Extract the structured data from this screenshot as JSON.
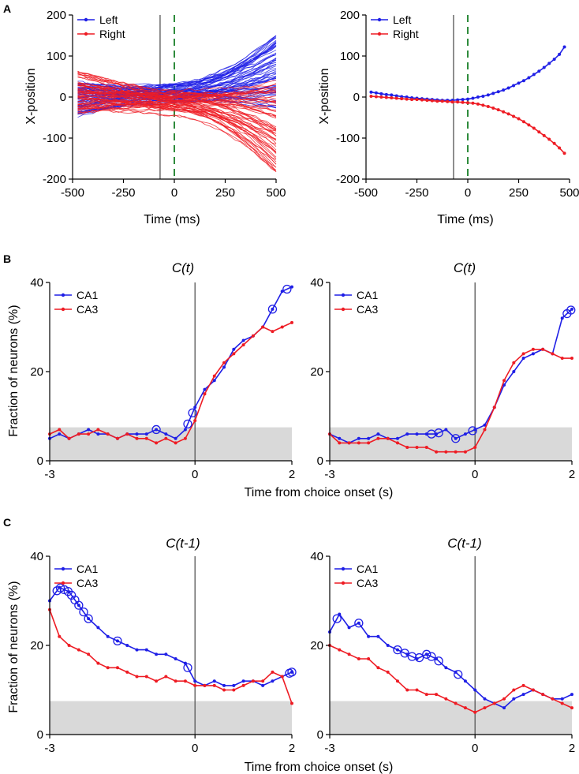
{
  "figure": {
    "panel_a": "A",
    "panel_b": "B",
    "panel_c": "C",
    "xlabel_ms": "Time (ms)",
    "ylabel_pos": "X-position",
    "xlabel_choice": "Time from choice onset (s)",
    "ylabel_frac": "Fraction of neurons (%)",
    "title_b": "C(t)",
    "title_c": "C(t-1)",
    "legend_left": "Left",
    "legend_right": "Right",
    "legend_ca1": "CA1",
    "legend_ca3": "CA3"
  },
  "colors": {
    "blue": "#1f1fe6",
    "red": "#ee1c24",
    "gray_band": "#d9d9d9",
    "green_dash": "#2e8b3c",
    "vline": "#555555"
  },
  "chart_data": [
    {
      "id": "A1",
      "type": "line",
      "title": "",
      "xlabel": "Time (ms)",
      "ylabel": "X-position",
      "xlim": [
        -500,
        500
      ],
      "ylim": [
        -200,
        200
      ],
      "xticks": [
        -500,
        -250,
        0,
        250,
        500
      ],
      "xtick_labels": [
        "-500",
        "-250",
        "0",
        "250",
        "500"
      ],
      "yticks": [
        -200,
        -100,
        0,
        100,
        200
      ],
      "ytick_labels": [
        "-200",
        "-100",
        "0",
        "100",
        "200"
      ],
      "vline_solid": -70,
      "vline_dashed": 0,
      "legend": [
        "Left",
        "Right"
      ],
      "note": "Individual trial trajectories (many trials per side)",
      "trial_bundles": [
        {
          "name": "Left",
          "color": "blue",
          "n": 60,
          "start_range": [
            -50,
            40
          ],
          "end_range": [
            -30,
            155
          ]
        },
        {
          "name": "Right",
          "color": "red",
          "n": 60,
          "start_range": [
            -40,
            65
          ],
          "end_range": [
            -190,
            40
          ]
        }
      ]
    },
    {
      "id": "A2",
      "type": "line",
      "title": "",
      "xlabel": "Time (ms)",
      "ylabel": "X-position",
      "xlim": [
        -500,
        500
      ],
      "ylim": [
        -200,
        200
      ],
      "xticks": [
        -500,
        -250,
        0,
        250,
        500
      ],
      "xtick_labels": [
        "-500",
        "-250",
        "0",
        "250",
        "500"
      ],
      "yticks": [
        -200,
        -100,
        0,
        100,
        200
      ],
      "ytick_labels": [
        "-200",
        "-100",
        "0",
        "100",
        "200"
      ],
      "vline_solid": -70,
      "vline_dashed": 0,
      "legend": [
        "Left",
        "Right"
      ],
      "x": [
        -475,
        -450,
        -425,
        -400,
        -375,
        -350,
        -325,
        -300,
        -275,
        -250,
        -225,
        -200,
        -175,
        -150,
        -125,
        -100,
        -75,
        -50,
        -25,
        0,
        25,
        50,
        75,
        100,
        125,
        150,
        175,
        200,
        225,
        250,
        275,
        300,
        325,
        350,
        375,
        400,
        425,
        450,
        475
      ],
      "series": [
        {
          "name": "Left",
          "color": "blue",
          "values": [
            12,
            10,
            8,
            6,
            5,
            3,
            1,
            0,
            -2,
            -3,
            -4,
            -5,
            -6,
            -7,
            -8,
            -8,
            -8,
            -7,
            -6,
            -5,
            -3,
            0,
            2,
            5,
            9,
            13,
            17,
            22,
            28,
            34,
            40,
            47,
            55,
            63,
            72,
            82,
            92,
            104,
            122
          ]
        },
        {
          "name": "Right",
          "color": "red",
          "values": [
            2,
            1,
            0,
            -1,
            -2,
            -3,
            -4,
            -5,
            -6,
            -6,
            -7,
            -8,
            -9,
            -10,
            -10,
            -11,
            -12,
            -12,
            -13,
            -14,
            -15,
            -17,
            -20,
            -23,
            -27,
            -31,
            -36,
            -41,
            -47,
            -53,
            -60,
            -68,
            -76,
            -85,
            -94,
            -103,
            -113,
            -124,
            -137
          ]
        }
      ]
    },
    {
      "id": "B1",
      "type": "line",
      "title": "C(t)",
      "xlabel": "",
      "ylabel": "Fraction of neurons (%)",
      "xlim": [
        -3,
        2
      ],
      "ylim": [
        0,
        40
      ],
      "xticks": [
        -3,
        0,
        2
      ],
      "xtick_labels": [
        "-3",
        "0",
        "2"
      ],
      "yticks": [
        0,
        20,
        40
      ],
      "ytick_labels": [
        "0",
        "20",
        "40"
      ],
      "vline_solid": 0,
      "shaded_band": [
        0,
        7.5
      ],
      "legend": [
        "CA1",
        "CA3"
      ],
      "x": [
        -3.0,
        -2.8,
        -2.6,
        -2.4,
        -2.2,
        -2.0,
        -1.8,
        -1.6,
        -1.4,
        -1.2,
        -1.0,
        -0.8,
        -0.6,
        -0.4,
        -0.2,
        0.0,
        0.2,
        0.4,
        0.6,
        0.8,
        1.0,
        1.2,
        1.4,
        1.6,
        1.8,
        2.0
      ],
      "series": [
        {
          "name": "CA1",
          "color": "blue",
          "values": [
            5,
            6,
            5,
            6,
            7,
            6,
            6,
            5,
            6,
            6,
            6,
            7,
            6,
            5,
            7,
            12,
            16,
            18,
            21,
            25,
            27,
            28,
            30,
            34,
            38,
            39
          ]
        },
        {
          "name": "CA3",
          "color": "red",
          "values": [
            6,
            7,
            5,
            6,
            6,
            7,
            6,
            5,
            6,
            5,
            5,
            4,
            5,
            4,
            5,
            9,
            15,
            19,
            22,
            24,
            26,
            28,
            30,
            29,
            30,
            31
          ]
        }
      ],
      "sig_markers": [
        {
          "series": "CA1",
          "x": [
            -0.8,
            -0.15,
            -0.05,
            1.6,
            1.9
          ]
        }
      ]
    },
    {
      "id": "B2",
      "type": "line",
      "title": "C(t)",
      "xlabel": "",
      "ylabel": "",
      "xlim": [
        -3,
        2
      ],
      "ylim": [
        0,
        40
      ],
      "xticks": [
        -3,
        0,
        2
      ],
      "xtick_labels": [
        "-3",
        "0",
        "2"
      ],
      "yticks": [
        0,
        20,
        40
      ],
      "ytick_labels": [
        "0",
        "20",
        "40"
      ],
      "vline_solid": 0,
      "shaded_band": [
        0,
        7.5
      ],
      "legend": [
        "CA1",
        "CA3"
      ],
      "x": [
        -3.0,
        -2.8,
        -2.6,
        -2.4,
        -2.2,
        -2.0,
        -1.8,
        -1.6,
        -1.4,
        -1.2,
        -1.0,
        -0.8,
        -0.6,
        -0.4,
        -0.2,
        0.0,
        0.2,
        0.4,
        0.6,
        0.8,
        1.0,
        1.2,
        1.4,
        1.6,
        1.8,
        2.0
      ],
      "series": [
        {
          "name": "CA1",
          "color": "blue",
          "values": [
            6,
            5,
            4,
            5,
            5,
            6,
            5,
            5,
            6,
            6,
            6,
            6,
            7,
            5,
            6,
            7,
            8,
            12,
            17,
            20,
            23,
            24,
            25,
            24,
            32,
            34
          ]
        },
        {
          "name": "CA3",
          "color": "red",
          "values": [
            6,
            4,
            4,
            4,
            4,
            5,
            5,
            4,
            3,
            3,
            3,
            2,
            2,
            2,
            2,
            3,
            7,
            12,
            18,
            22,
            24,
            25,
            25,
            24,
            23,
            23
          ]
        }
      ],
      "sig_markers": [
        {
          "series": "CA1",
          "x": [
            -0.9,
            -0.75,
            -0.4,
            -0.05,
            1.9,
            1.98
          ]
        }
      ]
    },
    {
      "id": "C1",
      "type": "line",
      "title": "C(t-1)",
      "xlabel": "Time from choice onset (s)",
      "ylabel": "Fraction of neurons (%)",
      "xlim": [
        -3,
        2
      ],
      "ylim": [
        0,
        40
      ],
      "xticks": [
        -3,
        0,
        2
      ],
      "xtick_labels": [
        "-3",
        "0",
        "2"
      ],
      "yticks": [
        0,
        20,
        40
      ],
      "ytick_labels": [
        "0",
        "20",
        "40"
      ],
      "vline_solid": 0,
      "shaded_band": [
        0,
        7.5
      ],
      "legend": [
        "CA1",
        "CA3"
      ],
      "x": [
        -3.0,
        -2.8,
        -2.6,
        -2.4,
        -2.2,
        -2.0,
        -1.8,
        -1.6,
        -1.4,
        -1.2,
        -1.0,
        -0.8,
        -0.6,
        -0.4,
        -0.2,
        0.0,
        0.2,
        0.4,
        0.6,
        0.8,
        1.0,
        1.2,
        1.4,
        1.6,
        1.8,
        2.0
      ],
      "series": [
        {
          "name": "CA1",
          "color": "blue",
          "values": [
            30,
            33,
            32,
            29,
            26,
            24,
            22,
            21,
            20,
            19,
            19,
            18,
            18,
            17,
            16,
            12,
            11,
            12,
            11,
            11,
            12,
            12,
            11,
            12,
            13,
            14
          ]
        },
        {
          "name": "CA3",
          "color": "red",
          "values": [
            28,
            22,
            20,
            19,
            18,
            16,
            15,
            15,
            14,
            13,
            13,
            12,
            13,
            12,
            12,
            11,
            11,
            11,
            10,
            10,
            11,
            12,
            12,
            14,
            13,
            7
          ]
        }
      ],
      "sig_markers": [
        {
          "series": "CA1",
          "x": [
            -2.85,
            -2.78,
            -2.7,
            -2.62,
            -2.55,
            -2.48,
            -2.4,
            -2.3,
            -2.2,
            -1.6,
            -0.15,
            1.95,
            2.0
          ]
        }
      ]
    },
    {
      "id": "C2",
      "type": "line",
      "title": "C(t-1)",
      "xlabel": "Time from choice onset (s)",
      "ylabel": "",
      "xlim": [
        -3,
        2
      ],
      "ylim": [
        0,
        40
      ],
      "xticks": [
        -3,
        0,
        2
      ],
      "xtick_labels": [
        "-3",
        "0",
        "2"
      ],
      "yticks": [
        0,
        20,
        40
      ],
      "ytick_labels": [
        "0",
        "20",
        "40"
      ],
      "vline_solid": 0,
      "shaded_band": [
        0,
        7.5
      ],
      "legend": [
        "CA1",
        "CA3"
      ],
      "x": [
        -3.0,
        -2.8,
        -2.6,
        -2.4,
        -2.2,
        -2.0,
        -1.8,
        -1.6,
        -1.4,
        -1.2,
        -1.0,
        -0.8,
        -0.6,
        -0.4,
        -0.2,
        0.0,
        0.2,
        0.4,
        0.6,
        0.8,
        1.0,
        1.2,
        1.4,
        1.6,
        1.8,
        2.0
      ],
      "series": [
        {
          "name": "CA1",
          "color": "blue",
          "values": [
            23,
            27,
            24,
            25,
            22,
            22,
            20,
            19,
            18,
            17,
            18,
            17,
            15,
            14,
            12,
            10,
            8,
            7,
            6,
            8,
            9,
            10,
            9,
            8,
            8,
            9
          ]
        },
        {
          "name": "CA3",
          "color": "red",
          "values": [
            20,
            19,
            18,
            17,
            17,
            15,
            14,
            12,
            10,
            10,
            9,
            9,
            8,
            7,
            6,
            5,
            6,
            7,
            8,
            10,
            11,
            10,
            9,
            8,
            7,
            6
          ]
        }
      ],
      "sig_markers": [
        {
          "series": "CA1",
          "x": [
            -2.85,
            -2.4,
            -1.6,
            -1.45,
            -1.3,
            -1.15,
            -1.0,
            -0.9,
            -0.75,
            -0.35
          ]
        }
      ]
    }
  ]
}
